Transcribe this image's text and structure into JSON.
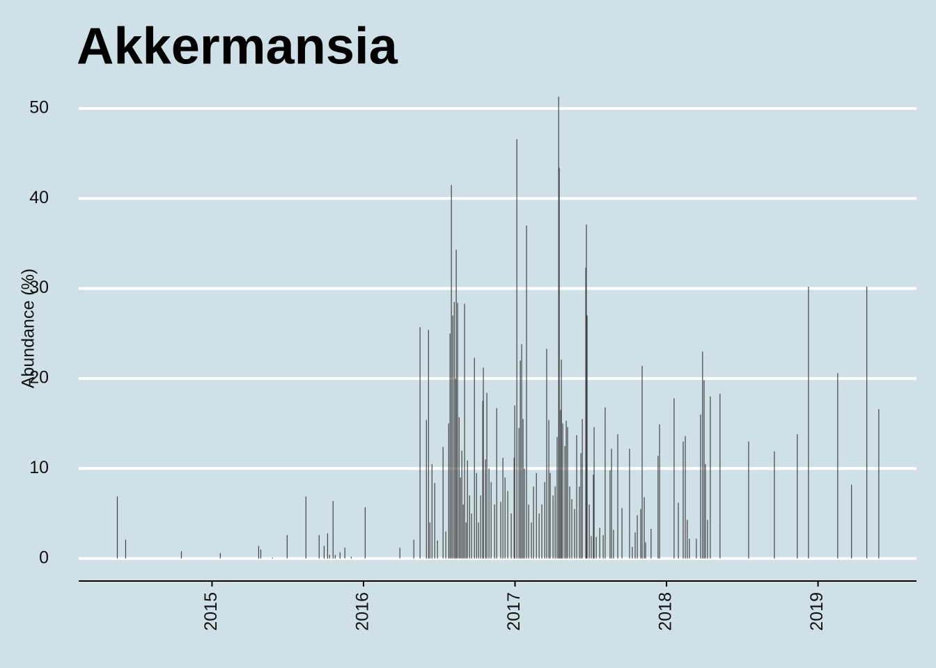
{
  "chart_data": {
    "type": "bar",
    "title": "Akkermansia",
    "y_label": "Abundance (%)",
    "color": "#444444",
    "grid": true,
    "xlim": [
      2014.12,
      2019.65
    ],
    "xticks": [
      2015,
      2016,
      2017,
      2018,
      2019
    ],
    "ylim": [
      -2.5,
      52
    ],
    "yticks": [
      0,
      10,
      20,
      30,
      40,
      50
    ],
    "x": [
      2014.375,
      2014.43,
      2014.798,
      2015.055,
      2015.308,
      2015.322,
      2015.4,
      2015.496,
      2015.62,
      2015.707,
      2015.74,
      2015.763,
      2015.776,
      2015.799,
      2015.813,
      2015.845,
      2015.877,
      2015.919,
      2016.011,
      2016.24,
      2016.332,
      2016.373,
      2016.415,
      2016.429,
      2016.438,
      2016.452,
      2016.47,
      2016.488,
      2016.525,
      2016.543,
      2016.562,
      2016.571,
      2016.58,
      2016.589,
      2016.599,
      2016.608,
      2016.612,
      2016.621,
      2016.631,
      2016.64,
      2016.649,
      2016.658,
      2016.667,
      2016.677,
      2016.686,
      2016.7,
      2016.713,
      2016.732,
      2016.746,
      2016.759,
      2016.773,
      2016.787,
      2016.791,
      2016.805,
      2016.814,
      2016.828,
      2016.842,
      2016.865,
      2016.879,
      2016.906,
      2016.92,
      2016.934,
      2016.952,
      2016.975,
      2016.994,
      2016.998,
      2017.012,
      2017.026,
      2017.035,
      2017.044,
      2017.053,
      2017.062,
      2017.076,
      2017.09,
      2017.108,
      2017.122,
      2017.141,
      2017.159,
      2017.177,
      2017.196,
      2017.209,
      2017.223,
      2017.232,
      2017.251,
      2017.265,
      2017.278,
      2017.288,
      2017.292,
      2017.301,
      2017.306,
      2017.315,
      2017.329,
      2017.338,
      2017.347,
      2017.361,
      2017.375,
      2017.393,
      2017.407,
      2017.425,
      2017.435,
      2017.444,
      2017.467,
      2017.471,
      2017.476,
      2017.49,
      2017.503,
      2017.517,
      2017.522,
      2017.536,
      2017.559,
      2017.582,
      2017.595,
      2017.627,
      2017.637,
      2017.65,
      2017.678,
      2017.706,
      2017.756,
      2017.774,
      2017.793,
      2017.807,
      2017.83,
      2017.839,
      2017.853,
      2017.862,
      2017.898,
      2017.944,
      2017.954,
      2018.05,
      2018.078,
      2018.11,
      2018.124,
      2018.137,
      2018.151,
      2018.197,
      2018.225,
      2018.238,
      2018.248,
      2018.257,
      2018.271,
      2018.289,
      2018.353,
      2018.542,
      2018.712,
      2018.863,
      2018.937,
      2019.13,
      2019.221,
      2019.322,
      2019.401
    ],
    "values": [
      6.9,
      2.1,
      0.8,
      0.6,
      1.4,
      1.0,
      0.1,
      2.6,
      6.9,
      2.6,
      1.4,
      2.8,
      0.4,
      6.4,
      0.4,
      0.7,
      1.2,
      0.2,
      5.7,
      1.2,
      2.1,
      25.7,
      15.4,
      25.4,
      4,
      10.5,
      8.4,
      2,
      12.4,
      3,
      15,
      25,
      41.5,
      27,
      28.5,
      20,
      34.3,
      28.4,
      15.7,
      9,
      12,
      6,
      28.3,
      4,
      10.9,
      7,
      5,
      22.3,
      9.5,
      4,
      7,
      17.5,
      21.2,
      11,
      18.4,
      10,
      8.5,
      6,
      16.7,
      6.3,
      11.2,
      9,
      7.5,
      5,
      11.2,
      17,
      46.6,
      14.5,
      22,
      23.8,
      15.5,
      10,
      37,
      6,
      4,
      8,
      9.5,
      5,
      6,
      8.5,
      23.3,
      15.4,
      9.5,
      7,
      8,
      13.5,
      51.3,
      43.4,
      16.5,
      22.1,
      15,
      12.5,
      15.3,
      14.6,
      8,
      6.6,
      5.5,
      13.7,
      8,
      11.7,
      15.5,
      32.3,
      37.1,
      27,
      6,
      2.5,
      9.3,
      14.6,
      2.4,
      3.4,
      2.6,
      16.8,
      9.8,
      12.2,
      3.2,
      13.8,
      5.6,
      12.2,
      1.3,
      2.9,
      4.8,
      5.5,
      21.4,
      6.8,
      1.8,
      3.3,
      11.4,
      14.9,
      17.8,
      6.2,
      13,
      13.6,
      4.3,
      2.2,
      2.2,
      16,
      23,
      19.8,
      10.5,
      4.3,
      18,
      18.3,
      13,
      11.9,
      13.8,
      30.2,
      20.6,
      8.2,
      30.2,
      16.6
    ]
  }
}
